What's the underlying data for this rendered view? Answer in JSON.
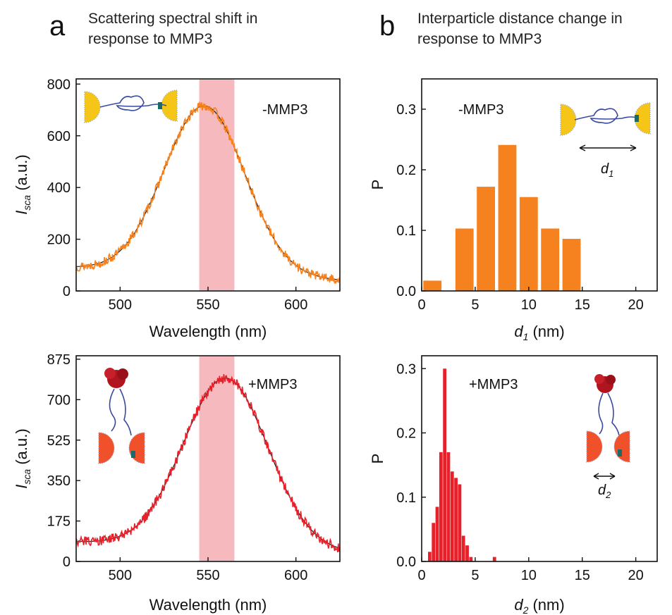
{
  "panels": {
    "a": {
      "letter": "a",
      "caption_line1": "Scattering spectral shift in",
      "caption_line2": "response to MMP3"
    },
    "b": {
      "letter": "b",
      "caption_line1": "Interparticle distance change in",
      "caption_line2": "response to MMP3"
    }
  },
  "colors": {
    "orange": "#F5821F",
    "red": "#E8202A",
    "fit_line": "#1a1a1a",
    "highlight_band": "#F4A8AE",
    "gold_particle": "#F5C518",
    "red_particle": "#F0502A",
    "linker": "#3a4aa0",
    "protein": "#B0141E"
  },
  "chart_data": [
    {
      "id": "a-top",
      "type": "line",
      "annotation": "-MMP3",
      "xlabel": "Wavelength (nm)",
      "ylabel_main": "I",
      "ylabel_sub": "sca",
      "ylabel_unit": " (a.u.)",
      "xlim": [
        475,
        625
      ],
      "ylim": [
        0,
        820
      ],
      "xticks": [
        500,
        550,
        600
      ],
      "yticks": [
        0,
        200,
        400,
        600,
        800
      ],
      "highlight_band": [
        545,
        565
      ],
      "series": [
        {
          "kind": "fit",
          "baseline": 90,
          "amplitude": 650,
          "center": 548,
          "sigma": 23
        },
        {
          "kind": "data",
          "baseline": 90,
          "amplitude": 650,
          "center": 548,
          "sigma": 23,
          "noise": 18
        }
      ]
    },
    {
      "id": "a-bottom",
      "type": "line",
      "annotation": "+MMP3",
      "xlabel": "Wavelength (nm)",
      "ylabel_main": "I",
      "ylabel_sub": "sca",
      "ylabel_unit": " (a.u.)",
      "xlim": [
        475,
        625
      ],
      "ylim": [
        0,
        890
      ],
      "xticks": [
        500,
        550,
        600
      ],
      "yticks": [
        0,
        175,
        350,
        525,
        700,
        875
      ],
      "highlight_band": [
        545,
        565
      ],
      "series": [
        {
          "kind": "fit",
          "baseline": 85,
          "amplitude": 735,
          "center": 560,
          "sigma": 24
        },
        {
          "kind": "data",
          "baseline": 85,
          "amplitude": 735,
          "center": 560,
          "sigma": 24,
          "noise": 22
        }
      ]
    },
    {
      "id": "b-top",
      "type": "bar",
      "annotation": "-MMP3",
      "xlabel_main": "d",
      "xlabel_sub": "1",
      "xlabel_unit": " (nm)",
      "ylabel": "P",
      "inset_label_main": "d",
      "inset_label_sub": "1",
      "xlim": [
        0,
        22
      ],
      "ylim": [
        0,
        0.35
      ],
      "xticks": [
        0,
        5,
        10,
        15,
        20
      ],
      "yticks": [
        0.0,
        0.1,
        0.2,
        0.3
      ],
      "ytick_labels": [
        "0.0",
        "0.1",
        "0.2",
        "0.3"
      ],
      "bin_width": 2,
      "bar_fraction": 0.85,
      "x": [
        1,
        4,
        6,
        8,
        10,
        12,
        14,
        16
      ],
      "values": [
        0.017,
        0.103,
        0.172,
        0.241,
        0.155,
        0.103,
        0.086,
        0
      ]
    },
    {
      "id": "b-bottom",
      "type": "bar",
      "annotation": "+MMP3",
      "xlabel_main": "d",
      "xlabel_sub": "2",
      "xlabel_unit": " (nm)",
      "ylabel": "P",
      "inset_label_main": "d",
      "inset_label_sub": "2",
      "xlim": [
        0,
        22
      ],
      "ylim": [
        0,
        0.32
      ],
      "xticks": [
        0,
        5,
        10,
        15,
        20
      ],
      "yticks": [
        0.0,
        0.1,
        0.2,
        0.3
      ],
      "ytick_labels": [
        "0.0",
        "0.1",
        "0.2",
        "0.3"
      ],
      "bin_width": 0.35,
      "bar_fraction": 0.9,
      "x": [
        0.75,
        1.1,
        1.45,
        1.8,
        2.15,
        2.5,
        2.85,
        3.2,
        3.55,
        3.9,
        4.25,
        4.6,
        6.8
      ],
      "values": [
        0.015,
        0.06,
        0.085,
        0.17,
        0.3,
        0.17,
        0.14,
        0.13,
        0.12,
        0.04,
        0.025,
        0.007,
        0.007
      ]
    }
  ]
}
